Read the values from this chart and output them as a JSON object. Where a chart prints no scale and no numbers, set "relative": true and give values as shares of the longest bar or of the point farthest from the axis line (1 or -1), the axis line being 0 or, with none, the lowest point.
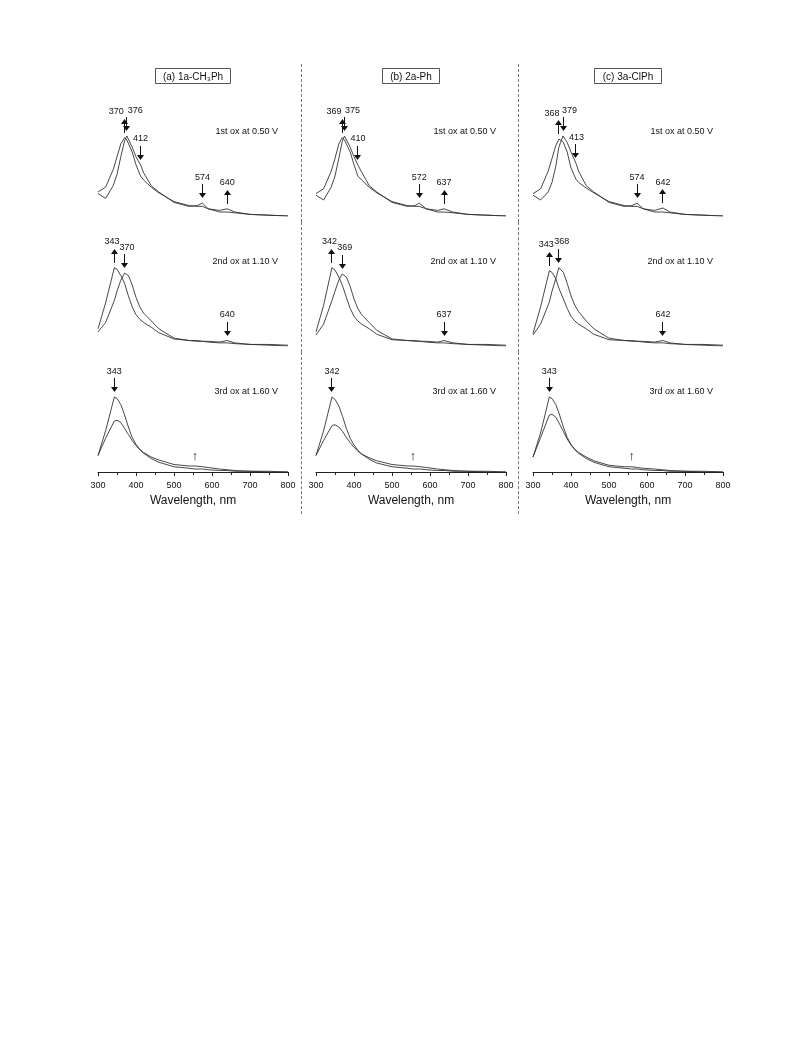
{
  "chart_data": [
    {
      "type": "line",
      "title": "(a) 1a-CH₃Ph",
      "relative": true,
      "xlim": [
        300,
        800
      ],
      "tick_labels": false,
      "marker": "none",
      "grid": false,
      "x": [
        300,
        320,
        340,
        350,
        360,
        370,
        376,
        390,
        400,
        412,
        420,
        440,
        460,
        500,
        540,
        560,
        575,
        590,
        620,
        640,
        660,
        700,
        750,
        800
      ],
      "series": [
        {
          "color": "#333333",
          "values": [
            0.28,
            0.22,
            0.38,
            0.52,
            0.74,
            0.94,
            1.0,
            0.86,
            0.74,
            0.64,
            0.54,
            0.38,
            0.3,
            0.17,
            0.12,
            0.13,
            0.16,
            0.09,
            0.05,
            0.05,
            0.04,
            0.02,
            0.01,
            0
          ]
        },
        {
          "color": "#333333",
          "values": [
            0.3,
            0.36,
            0.58,
            0.74,
            0.9,
            0.98,
            0.95,
            0.8,
            0.64,
            0.5,
            0.45,
            0.36,
            0.29,
            0.18,
            0.13,
            0.12,
            0.12,
            0.09,
            0.07,
            0.09,
            0.05,
            0.02,
            0.01,
            0
          ]
        }
      ],
      "annotations": [
        {
          "text": "370",
          "x": 370,
          "y": 0.98
        },
        {
          "text": "376",
          "x": 376,
          "y": 1.0
        },
        {
          "text": "412",
          "x": 412,
          "y": 0.64
        },
        {
          "text": "574",
          "x": 575,
          "y": 0.16
        },
        {
          "text": "640",
          "x": 640,
          "y": 0.09
        },
        "1st ox at 0.50 V"
      ]
    },
    {
      "type": "line",
      "title": "(b) 2a-Ph",
      "relative": true,
      "xlim": [
        300,
        800
      ],
      "tick_labels": false,
      "marker": "none",
      "grid": false,
      "x": [
        300,
        320,
        340,
        350,
        360,
        369,
        375,
        390,
        400,
        410,
        420,
        440,
        460,
        500,
        540,
        560,
        572,
        590,
        620,
        637,
        660,
        700,
        750,
        800
      ],
      "series": [
        {
          "color": "#333333",
          "values": [
            0.26,
            0.2,
            0.36,
            0.5,
            0.72,
            0.93,
            1.0,
            0.86,
            0.74,
            0.64,
            0.55,
            0.38,
            0.3,
            0.17,
            0.12,
            0.13,
            0.16,
            0.09,
            0.05,
            0.05,
            0.04,
            0.02,
            0.01,
            0
          ]
        },
        {
          "color": "#333333",
          "values": [
            0.28,
            0.34,
            0.56,
            0.72,
            0.9,
            0.98,
            0.95,
            0.8,
            0.64,
            0.5,
            0.45,
            0.36,
            0.29,
            0.18,
            0.13,
            0.12,
            0.12,
            0.09,
            0.07,
            0.09,
            0.05,
            0.02,
            0.01,
            0
          ]
        }
      ],
      "annotations": [
        {
          "text": "369",
          "x": 369,
          "y": 0.98
        },
        {
          "text": "375",
          "x": 375,
          "y": 1.0
        },
        {
          "text": "410",
          "x": 410,
          "y": 0.64
        },
        {
          "text": "572",
          "x": 572,
          "y": 0.16
        },
        {
          "text": "637",
          "x": 637,
          "y": 0.09
        },
        "1st ox at 0.50 V"
      ]
    },
    {
      "type": "line",
      "title": "(c) 3a-ClPh",
      "relative": true,
      "xlim": [
        300,
        800
      ],
      "tick_labels": false,
      "marker": "none",
      "grid": false,
      "x": [
        300,
        320,
        340,
        350,
        360,
        368,
        379,
        390,
        400,
        413,
        420,
        440,
        460,
        500,
        540,
        560,
        574,
        590,
        620,
        642,
        660,
        700,
        750,
        800
      ],
      "series": [
        {
          "color": "#333333",
          "values": [
            0.26,
            0.2,
            0.3,
            0.42,
            0.62,
            0.86,
            1.0,
            0.92,
            0.8,
            0.66,
            0.56,
            0.38,
            0.3,
            0.17,
            0.12,
            0.13,
            0.16,
            0.09,
            0.05,
            0.05,
            0.04,
            0.02,
            0.01,
            0
          ]
        },
        {
          "color": "#333333",
          "values": [
            0.28,
            0.34,
            0.56,
            0.72,
            0.88,
            0.96,
            0.93,
            0.8,
            0.6,
            0.46,
            0.42,
            0.35,
            0.29,
            0.18,
            0.13,
            0.12,
            0.12,
            0.09,
            0.07,
            0.1,
            0.05,
            0.02,
            0.01,
            0
          ]
        }
      ],
      "annotations": [
        {
          "text": "368",
          "x": 368,
          "y": 0.96
        },
        {
          "text": "379",
          "x": 379,
          "y": 1.0
        },
        {
          "text": "413",
          "x": 413,
          "y": 0.66
        },
        {
          "text": "574",
          "x": 574,
          "y": 0.16
        },
        {
          "text": "642",
          "x": 642,
          "y": 0.1
        },
        "1st ox at 0.50 V"
      ]
    },
    {
      "type": "line",
      "relative": true,
      "xlim": [
        300,
        800
      ],
      "tick_labels": false,
      "marker": "none",
      "grid": false,
      "x": [
        300,
        320,
        343,
        350,
        360,
        370,
        380,
        390,
        400,
        410,
        420,
        440,
        460,
        500,
        540,
        560,
        575,
        590,
        620,
        640,
        660,
        700,
        750,
        800
      ],
      "series": [
        {
          "color": "#333333",
          "values": [
            0.18,
            0.3,
            0.58,
            0.7,
            0.84,
            0.93,
            0.9,
            0.78,
            0.62,
            0.5,
            0.42,
            0.32,
            0.22,
            0.1,
            0.07,
            0.07,
            0.06,
            0.06,
            0.05,
            0.07,
            0.04,
            0.02,
            0.02,
            0.01
          ]
        },
        {
          "color": "#333333",
          "values": [
            0.22,
            0.55,
            1.0,
            0.98,
            0.9,
            0.8,
            0.64,
            0.5,
            0.4,
            0.34,
            0.3,
            0.24,
            0.17,
            0.09,
            0.07,
            0.06,
            0.06,
            0.05,
            0.04,
            0.04,
            0.03,
            0.02,
            0.01,
            0
          ]
        }
      ],
      "annotations": [
        {
          "text": "343",
          "x": 343,
          "y": 1.0
        },
        {
          "text": "370",
          "x": 370,
          "y": 0.93
        },
        {
          "text": "640",
          "x": 640,
          "y": 0.07
        },
        "2nd ox at 1.10 V"
      ]
    },
    {
      "type": "line",
      "relative": true,
      "xlim": [
        300,
        800
      ],
      "tick_labels": false,
      "marker": "none",
      "grid": false,
      "x": [
        300,
        320,
        342,
        350,
        360,
        369,
        380,
        390,
        400,
        410,
        420,
        440,
        460,
        500,
        540,
        560,
        575,
        590,
        620,
        637,
        660,
        700,
        750,
        800
      ],
      "series": [
        {
          "color": "#333333",
          "values": [
            0.14,
            0.28,
            0.58,
            0.7,
            0.84,
            0.92,
            0.88,
            0.76,
            0.6,
            0.48,
            0.4,
            0.3,
            0.2,
            0.09,
            0.07,
            0.07,
            0.06,
            0.06,
            0.05,
            0.07,
            0.04,
            0.02,
            0.02,
            0.01
          ]
        },
        {
          "color": "#333333",
          "values": [
            0.18,
            0.52,
            1.0,
            0.97,
            0.88,
            0.78,
            0.62,
            0.48,
            0.38,
            0.32,
            0.28,
            0.22,
            0.15,
            0.08,
            0.07,
            0.06,
            0.06,
            0.05,
            0.04,
            0.04,
            0.03,
            0.02,
            0.01,
            0
          ]
        }
      ],
      "annotations": [
        {
          "text": "342",
          "x": 342,
          "y": 1.0
        },
        {
          "text": "369",
          "x": 369,
          "y": 0.92
        },
        {
          "text": "637",
          "x": 637,
          "y": 0.07
        },
        "2nd ox at 1.10 V"
      ]
    },
    {
      "type": "line",
      "relative": true,
      "xlim": [
        300,
        800
      ],
      "tick_labels": false,
      "marker": "none",
      "grid": false,
      "x": [
        300,
        320,
        343,
        350,
        360,
        368,
        380,
        390,
        400,
        410,
        420,
        440,
        460,
        500,
        540,
        560,
        575,
        590,
        620,
        642,
        660,
        700,
        750,
        800
      ],
      "series": [
        {
          "color": "#333333",
          "values": [
            0.14,
            0.28,
            0.56,
            0.7,
            0.86,
            1.0,
            0.94,
            0.8,
            0.64,
            0.52,
            0.44,
            0.32,
            0.22,
            0.1,
            0.07,
            0.07,
            0.06,
            0.06,
            0.05,
            0.07,
            0.04,
            0.02,
            0.02,
            0.01
          ]
        },
        {
          "color": "#333333",
          "values": [
            0.16,
            0.5,
            0.96,
            0.94,
            0.86,
            0.74,
            0.6,
            0.48,
            0.38,
            0.32,
            0.28,
            0.22,
            0.15,
            0.08,
            0.07,
            0.06,
            0.06,
            0.05,
            0.04,
            0.04,
            0.03,
            0.02,
            0.01,
            0
          ]
        }
      ],
      "annotations": [
        {
          "text": "343",
          "x": 343,
          "y": 0.96
        },
        {
          "text": "368",
          "x": 368,
          "y": 1.0
        },
        {
          "text": "642",
          "x": 642,
          "y": 0.07
        },
        "2nd ox at 1.10 V"
      ]
    },
    {
      "type": "line",
      "relative": true,
      "xlim": [
        300,
        800
      ],
      "xticks": [
        300,
        400,
        500,
        600,
        700,
        800
      ],
      "xlabel": "Wavelength, nm",
      "tick_labels": "x",
      "marker": "none",
      "grid": false,
      "x": [
        300,
        320,
        343,
        350,
        360,
        370,
        380,
        390,
        400,
        410,
        420,
        440,
        460,
        500,
        540,
        555,
        575,
        590,
        620,
        640,
        660,
        700,
        750,
        800
      ],
      "series": [
        {
          "color": "#333333",
          "values": [
            0.22,
            0.55,
            1.0,
            0.98,
            0.9,
            0.76,
            0.6,
            0.46,
            0.37,
            0.3,
            0.25,
            0.18,
            0.13,
            0.07,
            0.05,
            0.04,
            0.04,
            0.03,
            0.02,
            0.02,
            0.01,
            0.01,
            0,
            0
          ]
        },
        {
          "color": "#333333",
          "values": [
            0.22,
            0.45,
            0.68,
            0.69,
            0.66,
            0.58,
            0.5,
            0.42,
            0.35,
            0.3,
            0.26,
            0.2,
            0.16,
            0.1,
            0.08,
            0.08,
            0.07,
            0.06,
            0.04,
            0.03,
            0.02,
            0.01,
            0.01,
            0
          ]
        }
      ],
      "annotations": [
        {
          "text": "343",
          "x": 343,
          "y": 1.0
        },
        {
          "text": "↑",
          "x": 555,
          "y": 0.08
        },
        "3rd ox at 1.60 V"
      ]
    },
    {
      "type": "line",
      "relative": true,
      "xlim": [
        300,
        800
      ],
      "xticks": [
        300,
        400,
        500,
        600,
        700,
        800
      ],
      "xlabel": "Wavelength, nm",
      "tick_labels": "x",
      "marker": "none",
      "grid": false,
      "x": [
        300,
        320,
        342,
        350,
        360,
        370,
        380,
        390,
        400,
        410,
        420,
        440,
        460,
        500,
        540,
        555,
        575,
        590,
        620,
        640,
        660,
        700,
        750,
        800
      ],
      "series": [
        {
          "color": "#333333",
          "values": [
            0.22,
            0.55,
            1.0,
            0.97,
            0.88,
            0.74,
            0.58,
            0.45,
            0.36,
            0.29,
            0.24,
            0.17,
            0.12,
            0.07,
            0.05,
            0.04,
            0.04,
            0.03,
            0.02,
            0.02,
            0.01,
            0.01,
            0,
            0
          ]
        },
        {
          "color": "#333333",
          "values": [
            0.22,
            0.42,
            0.62,
            0.63,
            0.6,
            0.54,
            0.46,
            0.39,
            0.33,
            0.28,
            0.24,
            0.19,
            0.15,
            0.1,
            0.08,
            0.08,
            0.07,
            0.06,
            0.04,
            0.03,
            0.02,
            0.01,
            0.01,
            0
          ]
        }
      ],
      "annotations": [
        {
          "text": "342",
          "x": 342,
          "y": 1.0
        },
        {
          "text": "↑",
          "x": 555,
          "y": 0.08
        },
        "3rd ox at 1.60 V"
      ]
    },
    {
      "type": "line",
      "relative": true,
      "xlim": [
        300,
        800
      ],
      "xticks": [
        300,
        400,
        500,
        600,
        700,
        800
      ],
      "xlabel": "Wavelength, nm",
      "tick_labels": "x",
      "marker": "none",
      "grid": false,
      "x": [
        300,
        320,
        343,
        350,
        360,
        370,
        380,
        390,
        400,
        410,
        420,
        440,
        460,
        500,
        540,
        560,
        575,
        590,
        620,
        640,
        660,
        700,
        750,
        800
      ],
      "series": [
        {
          "color": "#333333",
          "values": [
            0.2,
            0.52,
            1.0,
            0.98,
            0.9,
            0.76,
            0.6,
            0.46,
            0.37,
            0.3,
            0.25,
            0.18,
            0.13,
            0.07,
            0.05,
            0.04,
            0.04,
            0.03,
            0.02,
            0.02,
            0.01,
            0.01,
            0,
            0
          ]
        },
        {
          "color": "#333333",
          "values": [
            0.2,
            0.46,
            0.76,
            0.77,
            0.73,
            0.64,
            0.54,
            0.44,
            0.36,
            0.3,
            0.26,
            0.2,
            0.15,
            0.09,
            0.07,
            0.07,
            0.06,
            0.05,
            0.04,
            0.03,
            0.02,
            0.01,
            0.01,
            0
          ]
        }
      ],
      "annotations": [
        {
          "text": "343",
          "x": 343,
          "y": 1.0
        },
        {
          "text": "↑",
          "x": 560,
          "y": 0.08
        },
        "3rd ox at 1.60 V"
      ]
    }
  ]
}
